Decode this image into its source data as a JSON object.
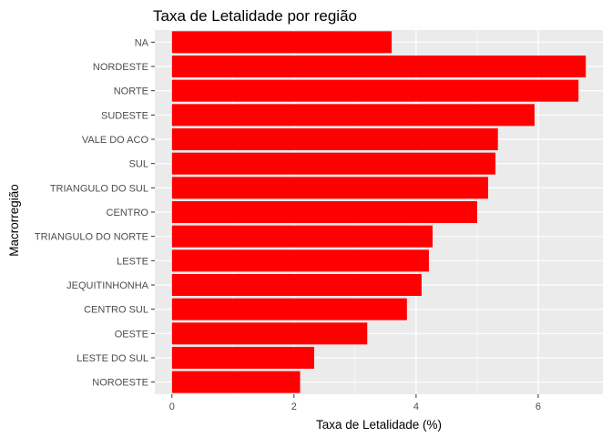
{
  "chart_data": {
    "type": "bar",
    "orientation": "horizontal",
    "title": "Taxa de Letalidade por região",
    "xlabel": "Taxa de Letalidade (%)",
    "ylabel": "Macrorregião",
    "categories": [
      "NA",
      "NORDESTE",
      "NORTE",
      "SUDESTE",
      "VALE DO ACO",
      "SUL",
      "TRIANGULO DO SUL",
      "CENTRO",
      "TRIANGULO DO NORTE",
      "LESTE",
      "JEQUITINHONHA",
      "CENTRO SUL",
      "OESTE",
      "LESTE DO SUL",
      "NOROESTE"
    ],
    "values": [
      3.6,
      6.78,
      6.66,
      5.94,
      5.34,
      5.3,
      5.18,
      5.0,
      4.27,
      4.21,
      4.09,
      3.85,
      3.2,
      2.33,
      2.1
    ],
    "xlim": [
      -0.28,
      7.06
    ],
    "xticks": [
      0,
      2,
      4,
      6
    ],
    "xtick_labels": [
      "0",
      "2",
      "4",
      "6"
    ],
    "bar_color": "#FF0000",
    "panel_background": "#EBEBEB",
    "grid_color": "#FFFFFF",
    "grid": true,
    "legend": "none"
  }
}
